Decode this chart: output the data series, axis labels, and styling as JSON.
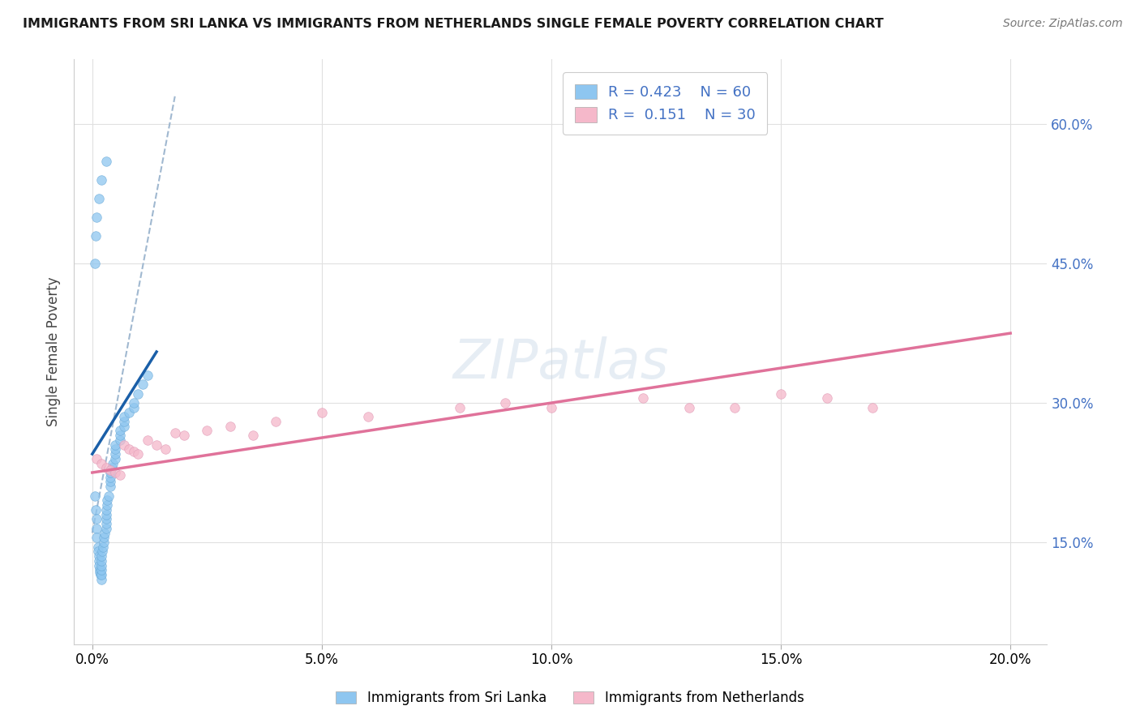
{
  "title": "IMMIGRANTS FROM SRI LANKA VS IMMIGRANTS FROM NETHERLANDS SINGLE FEMALE POVERTY CORRELATION CHART",
  "source": "Source: ZipAtlas.com",
  "ylabel": "Single Female Poverty",
  "x_tick_labels": [
    "0.0%",
    "5.0%",
    "10.0%",
    "15.0%",
    "20.0%"
  ],
  "x_tick_values": [
    0.0,
    0.05,
    0.1,
    0.15,
    0.2
  ],
  "y_tick_right_vals": [
    0.15,
    0.3,
    0.45,
    0.6
  ],
  "y_tick_right_labels": [
    "15.0%",
    "30.0%",
    "45.0%",
    "60.0%"
  ],
  "xlim": [
    -0.004,
    0.208
  ],
  "ylim": [
    0.04,
    0.67
  ],
  "legend1_R": "0.423",
  "legend1_N": "60",
  "legend2_R": "0.151",
  "legend2_N": "30",
  "color_sri_lanka": "#8ec6f0",
  "color_netherlands": "#f5b8ca",
  "color_line_sri_lanka": "#1a5fa8",
  "color_line_netherlands": "#e0729a",
  "color_dashed_line": "#a0b8d0",
  "watermark": "ZIPatlas",
  "legend_bottom_labels": [
    "Immigrants from Sri Lanka",
    "Immigrants from Netherlands"
  ],
  "sri_lanka_x": [
    0.0005,
    0.0008,
    0.001,
    0.001,
    0.001,
    0.0012,
    0.0013,
    0.0015,
    0.0015,
    0.0015,
    0.0016,
    0.0017,
    0.0018,
    0.002,
    0.002,
    0.002,
    0.002,
    0.002,
    0.002,
    0.0022,
    0.0023,
    0.0025,
    0.0025,
    0.0027,
    0.003,
    0.003,
    0.003,
    0.003,
    0.003,
    0.0032,
    0.0033,
    0.0035,
    0.004,
    0.004,
    0.004,
    0.004,
    0.0042,
    0.0045,
    0.005,
    0.005,
    0.005,
    0.005,
    0.006,
    0.006,
    0.006,
    0.007,
    0.007,
    0.007,
    0.008,
    0.009,
    0.009,
    0.01,
    0.011,
    0.012,
    0.0005,
    0.0007,
    0.001,
    0.0015,
    0.002,
    0.003
  ],
  "sri_lanka_y": [
    0.2,
    0.185,
    0.175,
    0.165,
    0.155,
    0.145,
    0.14,
    0.135,
    0.13,
    0.125,
    0.12,
    0.118,
    0.115,
    0.11,
    0.115,
    0.12,
    0.125,
    0.13,
    0.135,
    0.14,
    0.145,
    0.15,
    0.155,
    0.16,
    0.165,
    0.17,
    0.175,
    0.18,
    0.185,
    0.19,
    0.195,
    0.2,
    0.21,
    0.215,
    0.22,
    0.225,
    0.23,
    0.235,
    0.24,
    0.245,
    0.25,
    0.255,
    0.26,
    0.265,
    0.27,
    0.275,
    0.28,
    0.285,
    0.29,
    0.295,
    0.3,
    0.31,
    0.32,
    0.33,
    0.45,
    0.48,
    0.5,
    0.52,
    0.54,
    0.56
  ],
  "netherlands_x": [
    0.001,
    0.002,
    0.003,
    0.004,
    0.005,
    0.006,
    0.007,
    0.008,
    0.009,
    0.01,
    0.012,
    0.014,
    0.016,
    0.018,
    0.02,
    0.025,
    0.03,
    0.035,
    0.04,
    0.05,
    0.06,
    0.08,
    0.09,
    0.1,
    0.12,
    0.13,
    0.14,
    0.15,
    0.16,
    0.17
  ],
  "netherlands_y": [
    0.24,
    0.235,
    0.23,
    0.228,
    0.225,
    0.222,
    0.255,
    0.25,
    0.248,
    0.245,
    0.26,
    0.255,
    0.25,
    0.268,
    0.265,
    0.27,
    0.275,
    0.265,
    0.28,
    0.29,
    0.285,
    0.295,
    0.3,
    0.295,
    0.305,
    0.295,
    0.295,
    0.31,
    0.305,
    0.295
  ],
  "sri_lanka_trend_x": [
    0.0,
    0.014
  ],
  "sri_lanka_trend_y": [
    0.245,
    0.355
  ],
  "netherlands_trend_x": [
    0.0,
    0.2
  ],
  "netherlands_trend_y": [
    0.225,
    0.375
  ],
  "dashed_line_x": [
    0.0,
    0.018
  ],
  "dashed_line_y": [
    0.16,
    0.63
  ]
}
